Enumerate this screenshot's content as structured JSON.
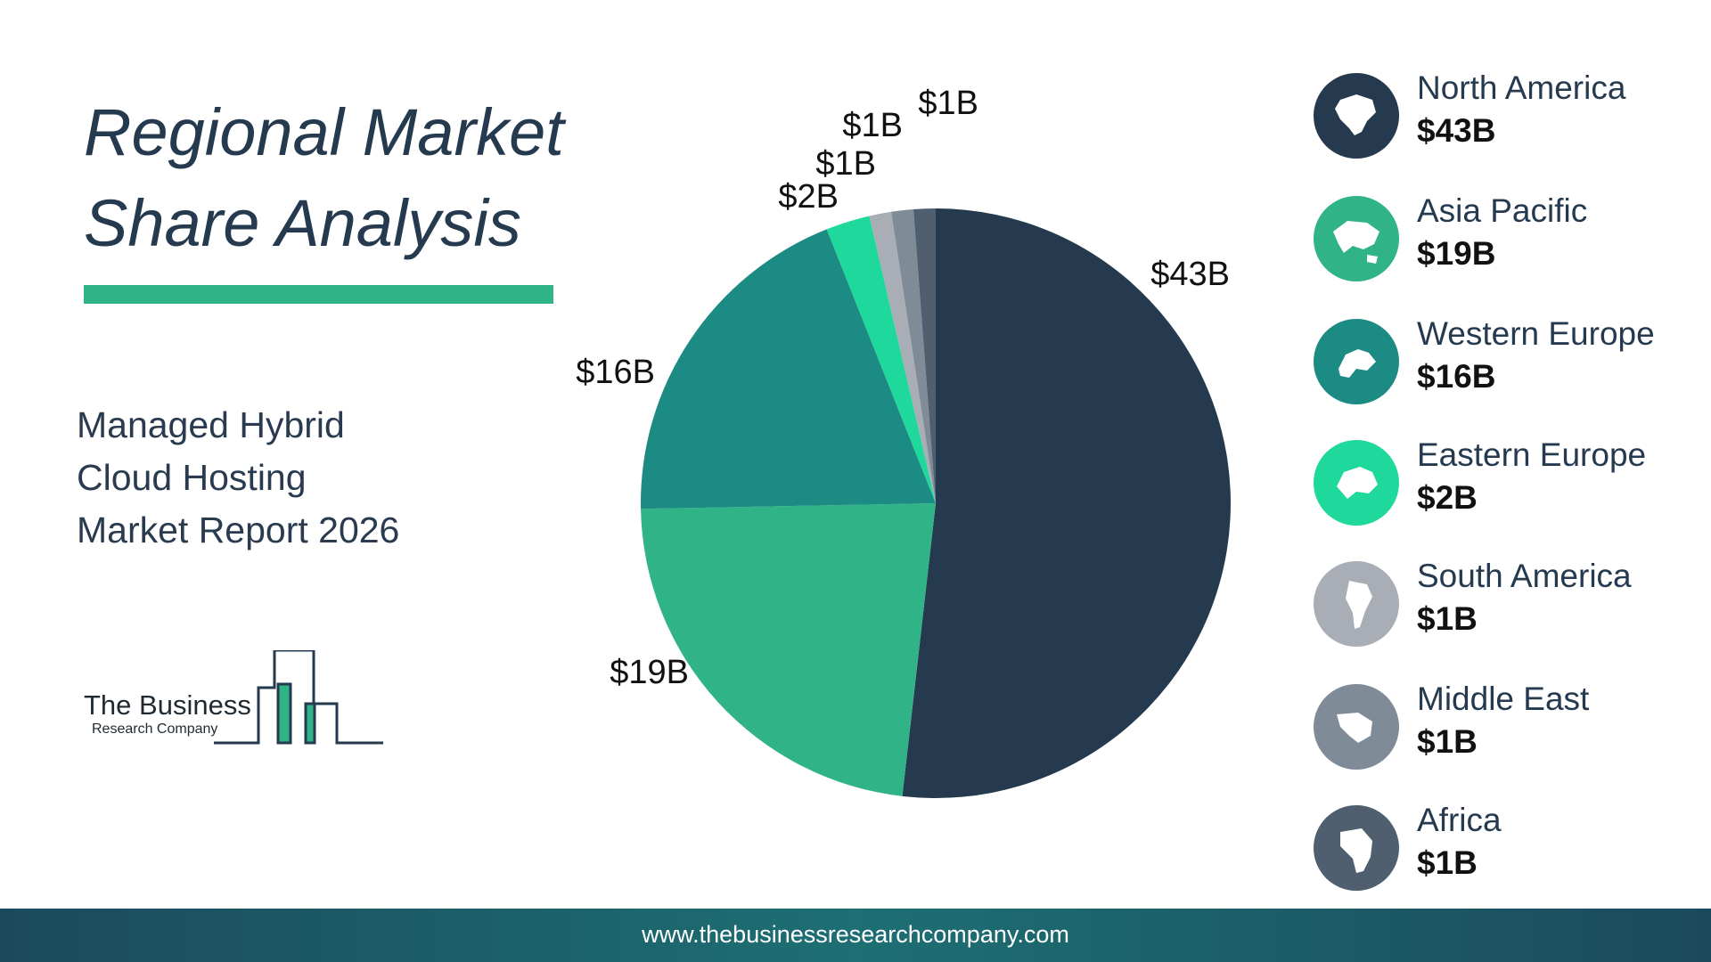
{
  "page": {
    "title_line1": "Regional Market",
    "title_line2": "Share Analysis",
    "subtitle_line1": "Managed Hybrid",
    "subtitle_line2": "Cloud Hosting",
    "subtitle_line3": "Market Report 2026"
  },
  "logo": {
    "name": "The Business",
    "sub": "Research Company"
  },
  "footer": {
    "url": "www.thebusinessresearchcompany.com"
  },
  "colors": {
    "title": "#253a4f",
    "accent_bar": "#30b487",
    "footer": "#1d6f73"
  },
  "chart_data": {
    "type": "pie",
    "title": "",
    "start": "12 o'clock, clockwise",
    "slices": [
      {
        "label": "North America",
        "value": 43,
        "display": "$43B",
        "color": "#253a4f",
        "icon": "north-america-map-icon"
      },
      {
        "label": "Asia Pacific",
        "value": 19,
        "display": "$19B",
        "color": "#30b487",
        "icon": "asia-pacific-map-icon"
      },
      {
        "label": "Western Europe",
        "value": 16,
        "display": "$16B",
        "color": "#1c8b84",
        "icon": "western-europe-map-icon"
      },
      {
        "label": "Eastern Europe",
        "value": 2,
        "display": "$2B",
        "color": "#1fd89b",
        "icon": "eastern-europe-map-icon"
      },
      {
        "label": "South America",
        "value": 1,
        "display": "$1B",
        "color": "#a9adb5",
        "icon": "south-america-map-icon"
      },
      {
        "label": "Middle East",
        "value": 1,
        "display": "$1B",
        "color": "#7f8b97",
        "icon": "middle-east-map-icon"
      },
      {
        "label": "Africa",
        "value": 1,
        "display": "$1B",
        "color": "#4f5f70",
        "icon": "africa-map-icon"
      }
    ],
    "legend_position": "right"
  }
}
